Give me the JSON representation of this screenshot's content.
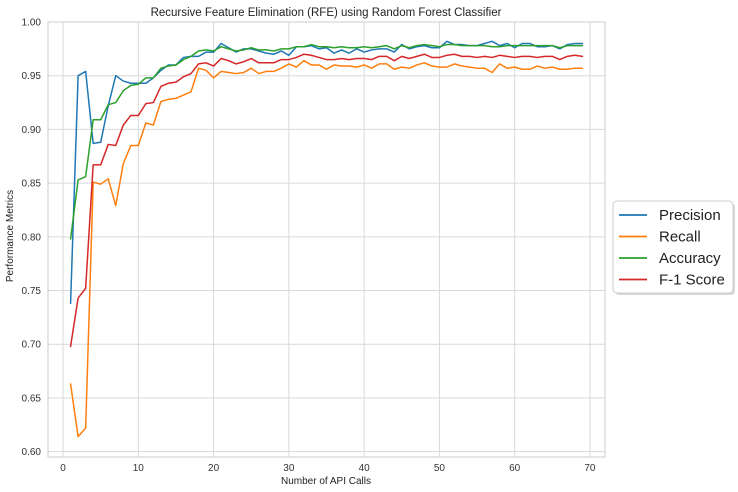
{
  "chart_data": {
    "type": "line",
    "title": "Recursive Feature Elimination (RFE) using Random Forest Classifier",
    "xlabel": "Number of API Calls",
    "ylabel": "Performance Metrics",
    "xlim": [
      -2,
      72
    ],
    "ylim": [
      0.595,
      1.0
    ],
    "xticks": [
      0,
      10,
      20,
      30,
      40,
      50,
      60,
      70
    ],
    "xtick_labels": [
      "0",
      "10",
      "20",
      "30",
      "40",
      "50",
      "60",
      "70"
    ],
    "yticks": [
      0.6,
      0.65,
      0.7,
      0.75,
      0.8,
      0.85,
      0.9,
      0.95,
      1.0
    ],
    "ytick_labels": [
      "0.60",
      "0.65",
      "0.70",
      "0.75",
      "0.80",
      "0.85",
      "0.90",
      "0.95",
      "1.00"
    ],
    "grid": true,
    "legend_position": "outside right",
    "x": [
      1,
      2,
      3,
      4,
      5,
      6,
      7,
      8,
      9,
      10,
      11,
      12,
      13,
      14,
      15,
      16,
      17,
      18,
      19,
      20,
      21,
      22,
      23,
      24,
      25,
      26,
      27,
      28,
      29,
      30,
      31,
      32,
      33,
      34,
      35,
      36,
      37,
      38,
      39,
      40,
      41,
      42,
      43,
      44,
      45,
      46,
      47,
      48,
      49,
      50,
      51,
      52,
      53,
      54,
      55,
      56,
      57,
      58,
      59,
      60,
      61,
      62,
      63,
      64,
      65,
      66,
      67,
      68,
      69
    ],
    "series": [
      {
        "name": "Precision",
        "color": "#1f77b4",
        "values": [
          0.738,
          0.95,
          0.954,
          0.887,
          0.888,
          0.922,
          0.95,
          0.945,
          0.943,
          0.943,
          0.943,
          0.948,
          0.955,
          0.96,
          0.96,
          0.967,
          0.968,
          0.968,
          0.972,
          0.972,
          0.98,
          0.976,
          0.972,
          0.975,
          0.975,
          0.973,
          0.971,
          0.97,
          0.973,
          0.969,
          0.977,
          0.977,
          0.978,
          0.975,
          0.976,
          0.971,
          0.974,
          0.971,
          0.975,
          0.972,
          0.974,
          0.975,
          0.975,
          0.972,
          0.979,
          0.975,
          0.977,
          0.978,
          0.976,
          0.976,
          0.982,
          0.979,
          0.979,
          0.978,
          0.978,
          0.98,
          0.982,
          0.978,
          0.98,
          0.976,
          0.98,
          0.98,
          0.977,
          0.977,
          0.978,
          0.975,
          0.979,
          0.98,
          0.98
        ]
      },
      {
        "name": "Recall",
        "color": "#ff7f0e",
        "values": [
          0.663,
          0.614,
          0.622,
          0.851,
          0.849,
          0.854,
          0.829,
          0.868,
          0.885,
          0.885,
          0.906,
          0.904,
          0.926,
          0.928,
          0.929,
          0.932,
          0.935,
          0.957,
          0.955,
          0.948,
          0.954,
          0.953,
          0.952,
          0.953,
          0.957,
          0.952,
          0.954,
          0.954,
          0.957,
          0.961,
          0.958,
          0.964,
          0.96,
          0.96,
          0.956,
          0.96,
          0.959,
          0.959,
          0.958,
          0.96,
          0.957,
          0.961,
          0.961,
          0.956,
          0.958,
          0.957,
          0.96,
          0.962,
          0.959,
          0.958,
          0.958,
          0.961,
          0.959,
          0.958,
          0.957,
          0.957,
          0.953,
          0.961,
          0.957,
          0.958,
          0.956,
          0.956,
          0.959,
          0.957,
          0.958,
          0.956,
          0.956,
          0.957,
          0.957
        ]
      },
      {
        "name": "Accuracy",
        "color": "#2ca02c",
        "values": [
          0.798,
          0.853,
          0.856,
          0.909,
          0.909,
          0.923,
          0.925,
          0.936,
          0.941,
          0.942,
          0.948,
          0.948,
          0.957,
          0.959,
          0.96,
          0.965,
          0.968,
          0.973,
          0.974,
          0.973,
          0.977,
          0.975,
          0.973,
          0.974,
          0.976,
          0.974,
          0.974,
          0.973,
          0.975,
          0.975,
          0.977,
          0.977,
          0.979,
          0.977,
          0.977,
          0.976,
          0.977,
          0.976,
          0.976,
          0.977,
          0.976,
          0.977,
          0.978,
          0.975,
          0.978,
          0.976,
          0.978,
          0.979,
          0.978,
          0.977,
          0.979,
          0.979,
          0.978,
          0.978,
          0.978,
          0.978,
          0.977,
          0.977,
          0.978,
          0.978,
          0.978,
          0.978,
          0.978,
          0.978,
          0.978,
          0.976,
          0.978,
          0.978,
          0.978
        ]
      },
      {
        "name": "F-1 Score",
        "color": "#d62728",
        "values": [
          0.698,
          0.743,
          0.752,
          0.867,
          0.867,
          0.886,
          0.885,
          0.904,
          0.913,
          0.913,
          0.924,
          0.925,
          0.94,
          0.943,
          0.944,
          0.949,
          0.952,
          0.961,
          0.962,
          0.959,
          0.966,
          0.964,
          0.961,
          0.963,
          0.966,
          0.962,
          0.962,
          0.962,
          0.965,
          0.965,
          0.967,
          0.97,
          0.969,
          0.967,
          0.965,
          0.965,
          0.966,
          0.965,
          0.966,
          0.966,
          0.965,
          0.968,
          0.968,
          0.964,
          0.968,
          0.966,
          0.968,
          0.97,
          0.967,
          0.967,
          0.969,
          0.97,
          0.968,
          0.968,
          0.967,
          0.968,
          0.967,
          0.969,
          0.968,
          0.967,
          0.968,
          0.968,
          0.967,
          0.968,
          0.968,
          0.965,
          0.968,
          0.969,
          0.968
        ]
      }
    ]
  }
}
